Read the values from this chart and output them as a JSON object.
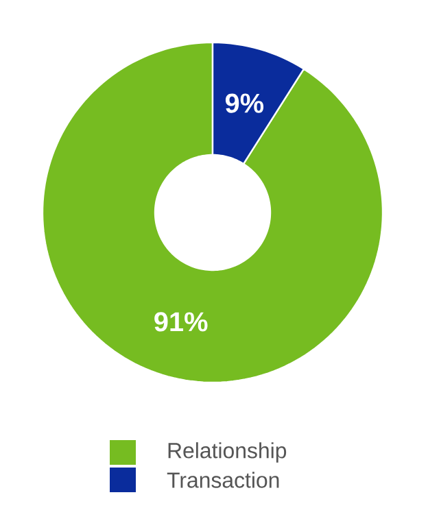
{
  "chart_data": {
    "type": "donut",
    "categories": [
      "Relationship",
      "Transaction"
    ],
    "values": [
      91,
      9
    ],
    "colors": [
      "#76bc21",
      "#0a2c9c"
    ],
    "value_labels": [
      "91%",
      "9%"
    ],
    "legend": "bottom"
  }
}
